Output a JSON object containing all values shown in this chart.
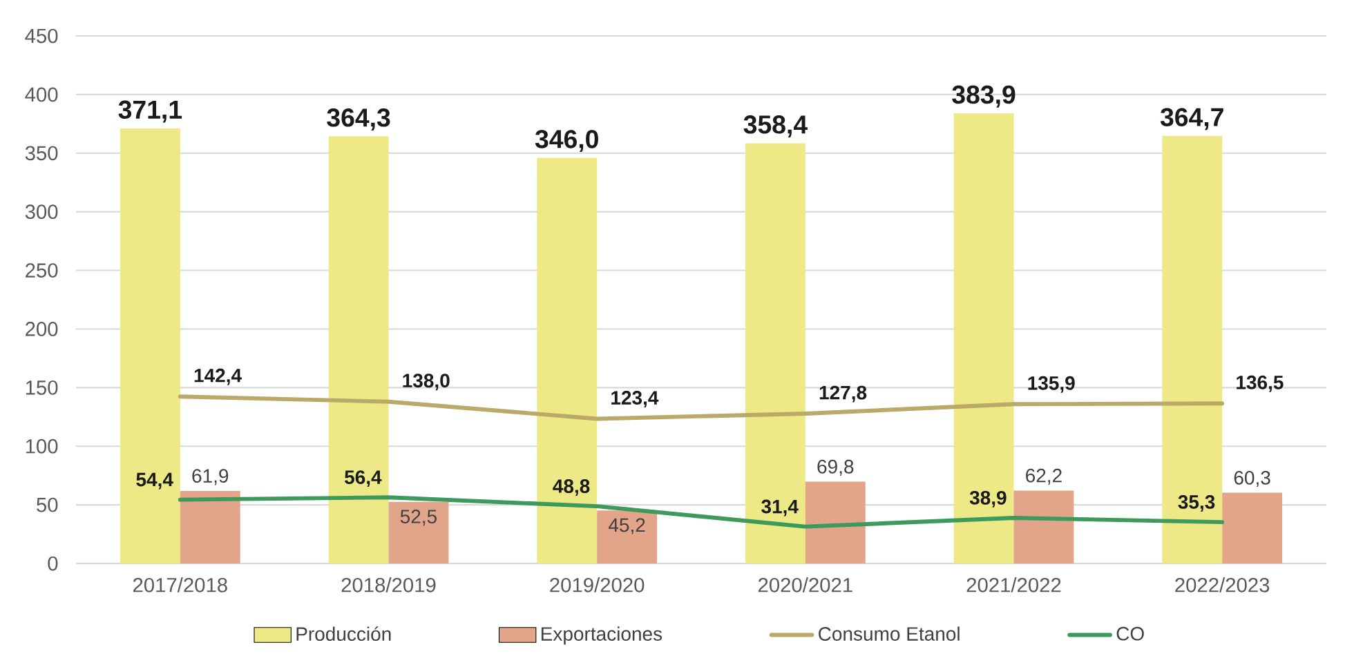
{
  "chart_data": {
    "type": "bar",
    "categories": [
      "2017/2018",
      "2018/2019",
      "2019/2020",
      "2020/2021",
      "2021/2022",
      "2022/2023"
    ],
    "series": [
      {
        "name": "Producción",
        "color": "#ede987",
        "values": [
          371.1,
          364.3,
          346.0,
          358.4,
          383.9,
          364.7
        ],
        "value_labels": [
          "371,1",
          "364,3",
          "346,0",
          "358,4",
          "383,9",
          "364,7"
        ]
      },
      {
        "name": "Exportaciones",
        "color": "#e2a58a",
        "values": [
          61.9,
          52.5,
          45.2,
          69.8,
          62.2,
          60.3
        ],
        "value_labels": [
          "61,9",
          "52,5",
          "45,2",
          "69,8",
          "62,2",
          "60,3"
        ]
      },
      {
        "name": "Consumo Etanol",
        "type": "line",
        "color": "#baaa6a",
        "values": [
          142.4,
          138.0,
          123.4,
          127.8,
          135.9,
          136.5
        ],
        "value_labels": [
          "142,4",
          "138,0",
          "123,4",
          "127,8",
          "135,9",
          "136,5"
        ]
      },
      {
        "name": "CO",
        "type": "line",
        "color": "#3e9a5c",
        "values": [
          54.4,
          56.4,
          48.8,
          31.4,
          38.9,
          35.3
        ],
        "value_labels": [
          "54,4",
          "56,4",
          "48,8",
          "31,4",
          "38,9",
          "35,3"
        ]
      }
    ],
    "ylim": [
      0,
      450
    ],
    "yticks": [
      0,
      50,
      100,
      150,
      200,
      250,
      300,
      350,
      400,
      450
    ],
    "grid": "y",
    "legend": "bottom",
    "marker": "none"
  }
}
